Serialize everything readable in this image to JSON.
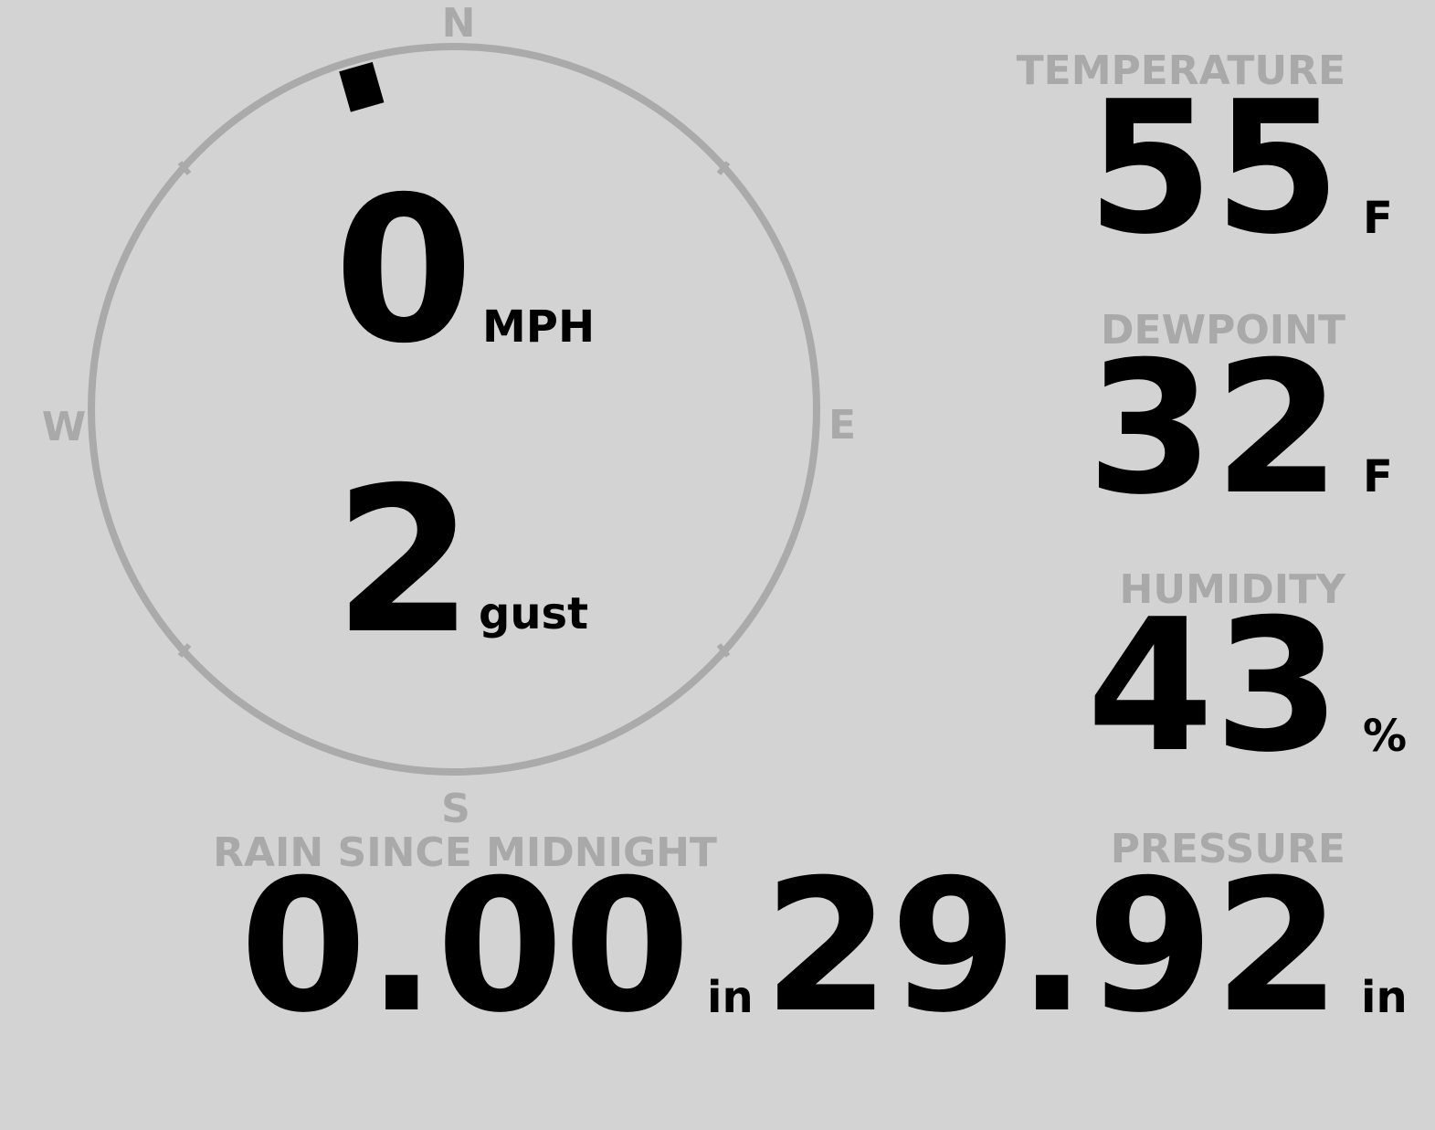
{
  "compass": {
    "north": "N",
    "east": "E",
    "south": "S",
    "west": "W",
    "direction": 344
  },
  "wind": {
    "speed": "0",
    "speed_unit": "MPH",
    "gust": "2",
    "gust_unit": "gust"
  },
  "temperature": {
    "label": "TEMPERATURE",
    "value": "55",
    "unit": "F"
  },
  "dewpoint": {
    "label": "DEWPOINT",
    "value": "32",
    "unit": "F"
  },
  "humidity": {
    "label": "HUMIDITY",
    "value": "43",
    "unit": "%"
  },
  "rain": {
    "label": "RAIN SINCE MIDNIGHT",
    "value": "0.00",
    "unit": "in"
  },
  "pressure": {
    "label": "PRESSURE",
    "value": "29.92",
    "unit": "in"
  }
}
